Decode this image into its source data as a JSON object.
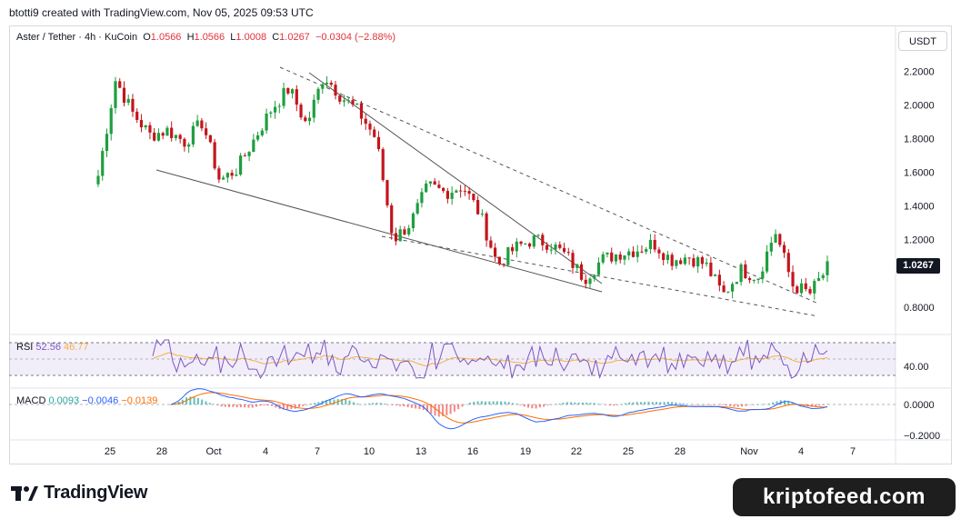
{
  "header": {
    "attribution": "btotti9 created with TradingView.com, Nov 05, 2025 09:53 UTC"
  },
  "legend": {
    "symbol": "Aster / Tether · 4h · KuCoin",
    "o_label": "O",
    "o_value": "1.0566",
    "h_label": "H",
    "h_value": "1.0566",
    "l_label": "L",
    "l_value": "1.0008",
    "c_label": "C",
    "c_value": "1.0267",
    "change": "−0.0304 (−2.88%)"
  },
  "currency_button": "USDT",
  "last_price_badge": "1.0267",
  "rsi": {
    "label": "RSI",
    "value": "52.56",
    "ma_value": "46.77",
    "axis_tick": "40.00"
  },
  "macd": {
    "label": "MACD",
    "macd_value": "0.0093",
    "signal_value": "−0.0046",
    "hist_value": "−0.0139",
    "axis_ticks": [
      "0.0000",
      "−0.2000"
    ]
  },
  "watermark": {
    "brand": "TradingView",
    "site": "kriptofeed.com"
  },
  "colors": {
    "up": "#26a69a",
    "down": "#ef5350",
    "candle_up": "#1f9e3f",
    "candle_down": "#c2161c",
    "rsi_line": "#7e57c2",
    "rsi_ma": "#f5b041",
    "macd_line": "#2962ff",
    "signal_line": "#ff6d00"
  },
  "chart_data": {
    "type": "candlestick",
    "title": "Aster / Tether · 4h · KuCoin",
    "y_ticks": [
      "2.2000",
      "2.0000",
      "1.8000",
      "1.6000",
      "1.4000",
      "1.2000",
      "0.8000"
    ],
    "x_ticks": [
      "25",
      "28",
      "Oct",
      "4",
      "7",
      "10",
      "13",
      "16",
      "19",
      "22",
      "25",
      "28",
      "Nov",
      "4",
      "7"
    ],
    "ylim": [
      0.68,
      2.3
    ],
    "x_points": [
      "Sep 24",
      "Sep 25",
      "Sep 26",
      "Sep 27",
      "Sep 28",
      "Sep 29",
      "Sep 30",
      "Oct 1",
      "Oct 2",
      "Oct 3",
      "Oct 4",
      "Oct 5",
      "Oct 6",
      "Oct 7",
      "Oct 8",
      "Oct 9",
      "Oct 10",
      "Oct 11",
      "Oct 12",
      "Oct 13",
      "Oct 14",
      "Oct 15",
      "Oct 16",
      "Oct 17",
      "Oct 18",
      "Oct 19",
      "Oct 20",
      "Oct 21",
      "Oct 22",
      "Oct 23",
      "Oct 24",
      "Oct 25",
      "Oct 26",
      "Oct 27",
      "Oct 28",
      "Oct 29",
      "Oct 30",
      "Oct 31",
      "Nov 1",
      "Nov 2",
      "Nov 3",
      "Nov 4",
      "Nov 5"
    ],
    "price_points": [
      1.58,
      2.15,
      1.95,
      1.82,
      1.85,
      1.78,
      1.9,
      1.55,
      1.62,
      1.8,
      1.98,
      2.1,
      1.88,
      2.18,
      2.05,
      1.96,
      1.8,
      1.2,
      1.3,
      1.52,
      1.48,
      1.52,
      1.35,
      1.05,
      1.15,
      1.2,
      1.18,
      1.1,
      0.97,
      1.08,
      1.12,
      1.14,
      1.18,
      1.08,
      1.1,
      1.05,
      0.87,
      1.02,
      0.98,
      1.25,
      0.93,
      0.88,
      1.03
    ],
    "trendlines": "falling wedge with dashed channel lines",
    "rsi_range": [
      0,
      100
    ],
    "macd_range": [
      -0.25,
      0.1
    ]
  }
}
